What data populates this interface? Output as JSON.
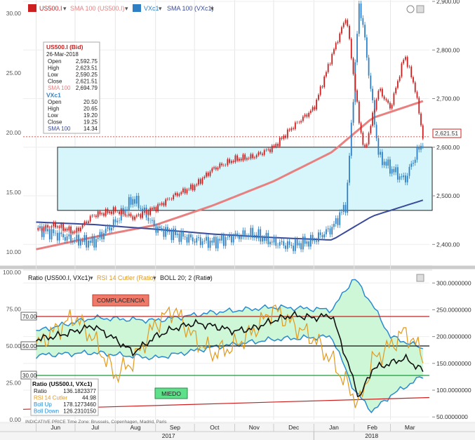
{
  "top_panel": {
    "legend": [
      {
        "label": "US500.I",
        "color": "#cc2020"
      },
      {
        "label": "SMA 100 (US500.I)",
        "color": "#e88080"
      },
      {
        "label": "VXc1",
        "color": "#2f7fc4"
      },
      {
        "label": "SMA 100 (VXc1)",
        "color": "#3a4a9a"
      }
    ],
    "price_tag": "2,621.51",
    "tooltip": {
      "title": "US500.I (Bid)",
      "date": "26-Mar-2018",
      "rows": [
        {
          "k": "Open",
          "v": "2,592.75"
        },
        {
          "k": "High",
          "v": "2,623.51"
        },
        {
          "k": "Low",
          "v": "2,590.25"
        },
        {
          "k": "Close",
          "v": "2,621.51"
        },
        {
          "k": "SMA 100",
          "v": "2,694.79"
        }
      ],
      "title2": "VXc1",
      "rows2": [
        {
          "k": "Open",
          "v": "20.50"
        },
        {
          "k": "High",
          "v": "20.65"
        },
        {
          "k": "Low",
          "v": "19.20"
        },
        {
          "k": "Close",
          "v": "19.25"
        },
        {
          "k": "SMA 100",
          "v": "14.34"
        }
      ]
    }
  },
  "bottom_panel": {
    "legend": [
      {
        "label": "Ratio (US500.I, VXc1)",
        "color": "#111111"
      },
      {
        "label": "RSI 14 Cutler (Ratio)",
        "color": "#e09a20"
      },
      {
        "label": "BOLL 20; 2 (Ratio)",
        "color": "#2a8ad0"
      }
    ],
    "complacencia": "COMPLACENCIA",
    "miedo": "MIEDO",
    "level_tags": [
      "70.00",
      "50.00",
      "30.00"
    ],
    "tooltip": {
      "title": "Ratio (US500.I, VXc1)",
      "rows": [
        {
          "k": "Ratio",
          "v": "136.1823377",
          "color": "#222222"
        },
        {
          "k": "RSI 14 Cutler",
          "v": "44.98",
          "color": "#e09a20"
        },
        {
          "k": "Boll Up",
          "v": "178.1273460",
          "color": "#2a8ad0"
        },
        {
          "k": "Boll Down",
          "v": "126.2310150",
          "color": "#2a8ad0"
        }
      ]
    }
  },
  "footer": {
    "indicative": "INDICATIVE PRICE   Time Zone: Brussels, Copenhagen, Madrid, Paris",
    "months": [
      "Jun",
      "Jul",
      "Aug",
      "Sep",
      "Oct",
      "Nov",
      "Dec",
      "Jan",
      "Feb",
      "Mar"
    ],
    "years": [
      "2017",
      "2018"
    ]
  },
  "chart_data": [
    {
      "type": "line",
      "title": "",
      "series": [
        {
          "name": "US500.I",
          "style": "candlestick",
          "color": "#cc2020",
          "x": [
            "2017-06-01",
            "2017-06-15",
            "2017-07-01",
            "2017-07-15",
            "2017-08-01",
            "2017-08-15",
            "2017-09-01",
            "2017-09-15",
            "2017-10-01",
            "2017-10-15",
            "2017-11-01",
            "2017-11-15",
            "2017-12-01",
            "2017-12-15",
            "2018-01-01",
            "2018-01-15",
            "2018-01-26",
            "2018-02-05",
            "2018-02-09",
            "2018-02-20",
            "2018-03-01",
            "2018-03-12",
            "2018-03-20",
            "2018-03-26"
          ],
          "y": [
            2430,
            2440,
            2425,
            2460,
            2470,
            2455,
            2475,
            2500,
            2520,
            2555,
            2575,
            2580,
            2600,
            2640,
            2680,
            2790,
            2870,
            2650,
            2590,
            2720,
            2680,
            2790,
            2720,
            2621.51
          ]
        },
        {
          "name": "SMA 100 (US500.I)",
          "color": "#e88080",
          "x": [
            "2017-06-01",
            "2017-07-15",
            "2017-09-01",
            "2017-10-15",
            "2017-12-01",
            "2018-01-15",
            "2018-02-15",
            "2018-03-26"
          ],
          "y": [
            2390,
            2415,
            2440,
            2480,
            2530,
            2590,
            2660,
            2694.79
          ]
        },
        {
          "name": "VXc1",
          "color": "#2f7fc4",
          "x": [
            "2017-06-01",
            "2017-06-15",
            "2017-07-01",
            "2017-07-15",
            "2017-08-01",
            "2017-08-15",
            "2017-09-01",
            "2017-09-15",
            "2017-10-01",
            "2017-10-15",
            "2017-11-01",
            "2017-11-15",
            "2017-12-01",
            "2017-12-15",
            "2018-01-01",
            "2018-01-15",
            "2018-01-26",
            "2018-02-05",
            "2018-02-09",
            "2018-02-20",
            "2018-03-01",
            "2018-03-12",
            "2018-03-20",
            "2018-03-26"
          ],
          "y": [
            12.0,
            11.5,
            11.0,
            10.8,
            12.5,
            14.5,
            12.0,
            11.5,
            11.0,
            10.8,
            11.3,
            11.5,
            10.8,
            10.5,
            11.0,
            12.0,
            14.0,
            31.0,
            28.0,
            18.0,
            17.0,
            16.0,
            18.0,
            19.25
          ]
        },
        {
          "name": "SMA 100 (VXc1)",
          "color": "#3a4a9a",
          "x": [
            "2017-06-01",
            "2017-07-15",
            "2017-09-01",
            "2017-10-15",
            "2017-12-01",
            "2018-01-15",
            "2018-02-15",
            "2018-03-26"
          ],
          "y": [
            12.5,
            12.3,
            11.9,
            11.5,
            11.2,
            11.0,
            13.0,
            14.34
          ]
        }
      ],
      "left_axis": {
        "ticks": [
          "10.00",
          "15.00",
          "20.00",
          "25.00",
          "30.00"
        ],
        "ylim": [
          9,
          31
        ]
      },
      "right_axis": {
        "ticks": [
          "2,400.00",
          "2,500.00",
          "2,600.00",
          "2,700.00",
          "2,800.00",
          "2,900.00"
        ],
        "ylim": [
          2360,
          2900
        ]
      }
    },
    {
      "type": "line",
      "title": "",
      "series": [
        {
          "name": "Ratio (US500.I, VXc1)",
          "color": "#111111",
          "x": [
            "2017-06-01",
            "2017-06-15",
            "2017-07-01",
            "2017-07-15",
            "2017-08-01",
            "2017-08-15",
            "2017-09-01",
            "2017-09-15",
            "2017-10-01",
            "2017-10-15",
            "2017-11-01",
            "2017-11-15",
            "2017-12-01",
            "2017-12-15",
            "2018-01-01",
            "2018-01-15",
            "2018-02-05",
            "2018-02-15",
            "2018-03-01",
            "2018-03-12",
            "2018-03-26"
          ],
          "y": [
            195,
            200,
            210,
            220,
            195,
            170,
            200,
            215,
            225,
            220,
            210,
            215,
            230,
            240,
            235,
            240,
            85,
            140,
            150,
            160,
            136.18
          ]
        },
        {
          "name": "RSI 14 Cutler (Ratio)",
          "color": "#e09a20",
          "x": [
            "2017-06-01",
            "2017-06-15",
            "2017-07-01",
            "2017-07-15",
            "2017-08-01",
            "2017-08-15",
            "2017-09-01",
            "2017-09-15",
            "2017-10-01",
            "2017-10-15",
            "2017-11-01",
            "2017-11-15",
            "2017-12-01",
            "2017-12-15",
            "2018-01-01",
            "2018-01-15",
            "2018-02-05",
            "2018-02-15",
            "2018-03-01",
            "2018-03-12",
            "2018-03-26"
          ],
          "y": [
            50,
            60,
            70,
            55,
            30,
            40,
            65,
            75,
            55,
            45,
            50,
            60,
            75,
            65,
            55,
            40,
            10,
            40,
            50,
            60,
            44.98
          ]
        },
        {
          "name": "BOLL 20; 2 Up",
          "color": "#2a8ad0",
          "x": [
            "2017-06-01",
            "2017-07-15",
            "2017-09-01",
            "2017-10-15",
            "2017-12-01",
            "2018-01-15",
            "2018-02-01",
            "2018-02-15",
            "2018-03-01",
            "2018-03-26"
          ],
          "y": [
            210,
            235,
            230,
            245,
            255,
            250,
            310,
            260,
            200,
            178.13
          ]
        },
        {
          "name": "BOLL 20; 2 Down",
          "color": "#2a8ad0",
          "x": [
            "2017-06-01",
            "2017-07-15",
            "2017-09-01",
            "2017-10-15",
            "2017-12-01",
            "2018-01-15",
            "2018-02-01",
            "2018-02-15",
            "2018-03-01",
            "2018-03-26"
          ],
          "y": [
            165,
            170,
            160,
            180,
            195,
            200,
            100,
            60,
            90,
            126.23
          ]
        }
      ],
      "left_axis": {
        "ticks": [
          "0.00",
          "25.00",
          "50.00",
          "75.00",
          "100.00"
        ],
        "ylim": [
          0,
          100
        ]
      },
      "right_axis": {
        "ticks": [
          "50.0000000",
          "100.0000000",
          "150.0000000",
          "200.0000000",
          "250.0000000",
          "300.0000000"
        ],
        "ylim": [
          45,
          320
        ]
      },
      "levels": [
        70,
        50,
        30
      ]
    }
  ]
}
